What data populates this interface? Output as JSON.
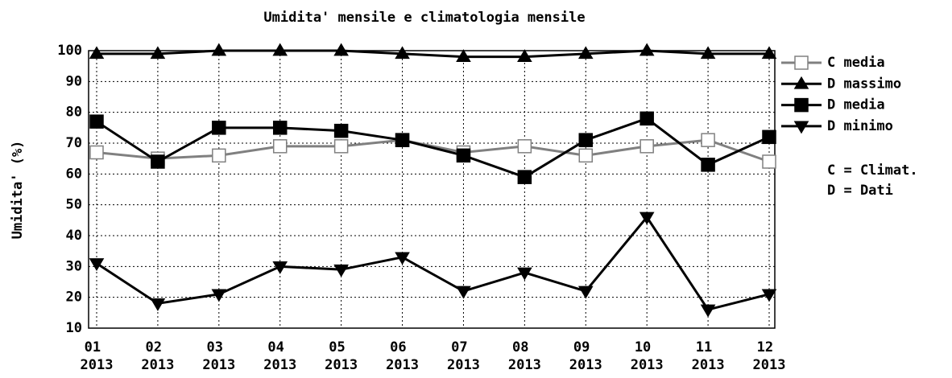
{
  "chart_data": {
    "type": "line",
    "title": "Umidita' mensile e climatologia mensile",
    "y_label": "Umidita' (%)",
    "categories": [
      "01 2013",
      "02 2013",
      "03 2013",
      "04 2013",
      "05 2013",
      "06 2013",
      "07 2013",
      "08 2013",
      "09 2013",
      "10 2013",
      "11 2013",
      "12 2013"
    ],
    "series": [
      {
        "name": "C media",
        "color": "#808080",
        "marker": "square-open",
        "values": [
          67,
          65,
          66,
          69,
          69,
          71,
          67,
          69,
          66,
          69,
          71,
          64
        ]
      },
      {
        "name": "D massimo",
        "color": "#000000",
        "marker": "triangle-up",
        "values": [
          99,
          99,
          100,
          100,
          100,
          99,
          98,
          98,
          99,
          100,
          99,
          99
        ]
      },
      {
        "name": "D media",
        "color": "#000000",
        "marker": "square",
        "values": [
          77,
          64,
          75,
          75,
          74,
          71,
          66,
          59,
          71,
          78,
          63,
          72
        ]
      },
      {
        "name": "D minimo",
        "color": "#000000",
        "marker": "triangle-down",
        "values": [
          31,
          18,
          21,
          30,
          29,
          33,
          22,
          28,
          22,
          46,
          16,
          21
        ]
      }
    ],
    "notes": [
      "C = Climat.",
      "D = Dati"
    ],
    "ylim": [
      10,
      100
    ],
    "yticks": [
      10,
      20,
      30,
      40,
      50,
      60,
      70,
      80,
      90,
      100
    ],
    "grid": true,
    "legend": "right"
  }
}
